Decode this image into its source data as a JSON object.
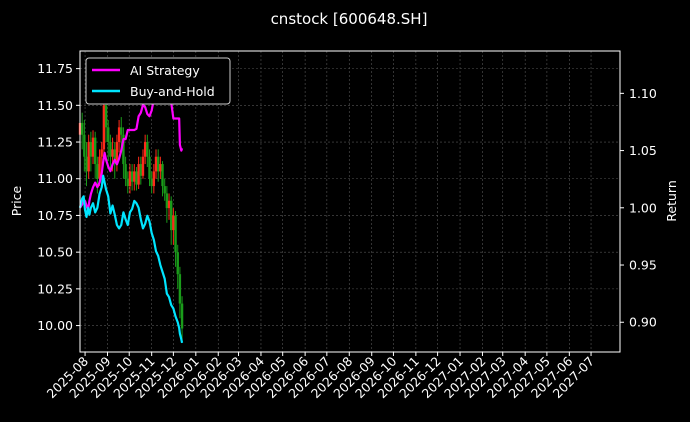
{
  "chart_data": {
    "type": "line",
    "title": "cnstock [600648.SH]",
    "ylabel_left": "Price",
    "ylabel_right": "Return",
    "ylim_left": [
      9.82,
      11.87
    ],
    "ylim_right": [
      0.874,
      1.137
    ],
    "xlim": [
      "2025-07-25",
      "2027-08-10"
    ],
    "x_tick_labels": [
      "2025-08",
      "2025-09",
      "2025-10",
      "2025-11",
      "2025-12",
      "2026-01",
      "2026-02",
      "2026-03",
      "2026-04",
      "2026-05",
      "2026-06",
      "2026-07",
      "2026-08",
      "2026-09",
      "2026-10",
      "2026-11",
      "2026-12",
      "2027-01",
      "2027-02",
      "2027-03",
      "2027-04",
      "2027-05",
      "2027-06",
      "2027-07"
    ],
    "x_tick_dates": [
      "2025-08-01",
      "2025-09-01",
      "2025-10-01",
      "2025-11-01",
      "2025-12-01",
      "2026-01-01",
      "2026-02-01",
      "2026-03-01",
      "2026-04-01",
      "2026-05-01",
      "2026-06-01",
      "2026-07-01",
      "2026-08-01",
      "2026-09-01",
      "2026-10-01",
      "2026-11-01",
      "2026-12-01",
      "2027-01-01",
      "2027-02-01",
      "2027-03-01",
      "2027-04-01",
      "2027-05-01",
      "2027-06-01",
      "2027-07-01"
    ],
    "y_left_ticks": [
      "10.00",
      "10.25",
      "10.50",
      "10.75",
      "11.00",
      "11.25",
      "11.50",
      "11.75"
    ],
    "y_right_ticks": [
      "0.90",
      "0.95",
      "1.00",
      "1.05",
      "1.10"
    ],
    "grid": true,
    "legend_position": "top-left",
    "colors": {
      "background": "#000000",
      "up_candle": "#ff2a1a",
      "down_candle": "#1a9c1a",
      "ai_strategy": "#ff00ff",
      "buy_and_hold": "#00e5ff",
      "grid": "#555555"
    },
    "candles": [
      {
        "x": "2025-07-25",
        "open": 11.3,
        "close": 11.38,
        "low": 11.22,
        "high": 11.42
      },
      {
        "x": "2025-07-28",
        "open": 11.38,
        "close": 11.3,
        "low": 11.2,
        "high": 11.45
      },
      {
        "x": "2025-07-31",
        "open": 11.3,
        "close": 11.15,
        "low": 11.05,
        "high": 11.4
      },
      {
        "x": "2025-08-03",
        "open": 11.15,
        "close": 11.05,
        "low": 10.95,
        "high": 11.25
      },
      {
        "x": "2025-08-06",
        "open": 11.05,
        "close": 11.25,
        "low": 11.0,
        "high": 11.3
      },
      {
        "x": "2025-08-09",
        "open": 11.25,
        "close": 11.15,
        "low": 11.05,
        "high": 11.32
      },
      {
        "x": "2025-08-12",
        "open": 11.15,
        "close": 11.28,
        "low": 11.1,
        "high": 11.33
      },
      {
        "x": "2025-08-15",
        "open": 11.28,
        "close": 11.1,
        "low": 11.0,
        "high": 11.32
      },
      {
        "x": "2025-08-18",
        "open": 11.1,
        "close": 11.0,
        "low": 10.9,
        "high": 11.15
      },
      {
        "x": "2025-08-21",
        "open": 11.0,
        "close": 11.15,
        "low": 10.95,
        "high": 11.2
      },
      {
        "x": "2025-08-24",
        "open": 11.15,
        "close": 11.2,
        "low": 11.05,
        "high": 11.25
      },
      {
        "x": "2025-08-27",
        "open": 11.2,
        "close": 11.5,
        "low": 11.15,
        "high": 11.62
      },
      {
        "x": "2025-08-30",
        "open": 11.5,
        "close": 11.35,
        "low": 11.25,
        "high": 11.58
      },
      {
        "x": "2025-09-02",
        "open": 11.35,
        "close": 11.25,
        "low": 11.12,
        "high": 11.4
      },
      {
        "x": "2025-09-05",
        "open": 11.25,
        "close": 11.15,
        "low": 11.05,
        "high": 11.3
      },
      {
        "x": "2025-09-08",
        "open": 11.15,
        "close": 11.2,
        "low": 11.05,
        "high": 11.28
      },
      {
        "x": "2025-09-11",
        "open": 11.2,
        "close": 11.1,
        "low": 11.0,
        "high": 11.25
      },
      {
        "x": "2025-09-14",
        "open": 11.1,
        "close": 11.25,
        "low": 11.05,
        "high": 11.3
      },
      {
        "x": "2025-09-17",
        "open": 11.25,
        "close": 11.35,
        "low": 11.18,
        "high": 11.4
      },
      {
        "x": "2025-09-20",
        "open": 11.35,
        "close": 11.3,
        "low": 11.2,
        "high": 11.42
      },
      {
        "x": "2025-09-23",
        "open": 11.3,
        "close": 11.1,
        "low": 11.0,
        "high": 11.35
      },
      {
        "x": "2025-09-26",
        "open": 11.1,
        "close": 11.0,
        "low": 10.95,
        "high": 11.15
      },
      {
        "x": "2025-09-29",
        "open": 11.0,
        "close": 10.95,
        "low": 10.9,
        "high": 11.05
      },
      {
        "x": "2025-10-02",
        "open": 10.95,
        "close": 11.05,
        "low": 10.9,
        "high": 11.1
      },
      {
        "x": "2025-10-05",
        "open": 11.05,
        "close": 10.98,
        "low": 10.92,
        "high": 11.1
      },
      {
        "x": "2025-10-08",
        "open": 10.98,
        "close": 11.05,
        "low": 10.92,
        "high": 11.1
      },
      {
        "x": "2025-10-11",
        "open": 11.05,
        "close": 10.96,
        "low": 10.92,
        "high": 11.08
      },
      {
        "x": "2025-10-14",
        "open": 10.96,
        "close": 11.1,
        "low": 10.93,
        "high": 11.15
      },
      {
        "x": "2025-10-17",
        "open": 11.1,
        "close": 11.02,
        "low": 10.96,
        "high": 11.15
      },
      {
        "x": "2025-10-20",
        "open": 11.02,
        "close": 11.15,
        "low": 11.0,
        "high": 11.2
      },
      {
        "x": "2025-10-23",
        "open": 11.15,
        "close": 11.25,
        "low": 11.1,
        "high": 11.3
      },
      {
        "x": "2025-10-26",
        "open": 11.25,
        "close": 11.15,
        "low": 11.08,
        "high": 11.3
      },
      {
        "x": "2025-10-29",
        "open": 11.15,
        "close": 11.0,
        "low": 10.95,
        "high": 11.2
      },
      {
        "x": "2025-11-01",
        "open": 11.0,
        "close": 10.95,
        "low": 10.9,
        "high": 11.05
      },
      {
        "x": "2025-11-04",
        "open": 10.95,
        "close": 11.05,
        "low": 10.9,
        "high": 11.1
      },
      {
        "x": "2025-11-07",
        "open": 11.05,
        "close": 11.15,
        "low": 11.0,
        "high": 11.2
      },
      {
        "x": "2025-11-10",
        "open": 11.15,
        "close": 11.05,
        "low": 10.98,
        "high": 11.2
      },
      {
        "x": "2025-11-13",
        "open": 11.05,
        "close": 11.1,
        "low": 11.0,
        "high": 11.15
      },
      {
        "x": "2025-11-16",
        "open": 11.1,
        "close": 10.95,
        "low": 10.88,
        "high": 11.12
      },
      {
        "x": "2025-11-19",
        "open": 10.95,
        "close": 10.9,
        "low": 10.85,
        "high": 11.0
      },
      {
        "x": "2025-11-22",
        "open": 10.9,
        "close": 10.8,
        "low": 10.7,
        "high": 10.95
      },
      {
        "x": "2025-11-25",
        "open": 10.8,
        "close": 10.85,
        "low": 10.72,
        "high": 10.9
      },
      {
        "x": "2025-11-28",
        "open": 10.85,
        "close": 10.65,
        "low": 10.55,
        "high": 10.88
      },
      {
        "x": "2025-12-01",
        "open": 10.65,
        "close": 10.75,
        "low": 10.55,
        "high": 10.8
      },
      {
        "x": "2025-12-04",
        "open": 10.75,
        "close": 10.5,
        "low": 10.4,
        "high": 10.78
      },
      {
        "x": "2025-12-07",
        "open": 10.5,
        "close": 10.35,
        "low": 10.25,
        "high": 10.55
      },
      {
        "x": "2025-12-10",
        "open": 10.35,
        "close": 10.15,
        "low": 10.05,
        "high": 10.4
      },
      {
        "x": "2025-12-13",
        "open": 10.15,
        "close": 9.98,
        "low": 9.9,
        "high": 10.2
      }
    ],
    "series": [
      {
        "name": "AI Strategy",
        "points": [
          [
            "2025-07-25",
            1.0
          ],
          [
            "2025-07-28",
            1.003
          ],
          [
            "2025-07-30",
            1.006
          ],
          [
            "2025-08-01",
            1.006
          ],
          [
            "2025-08-03",
            1.002
          ],
          [
            "2025-08-05",
            0.998
          ],
          [
            "2025-08-07",
            1.006
          ],
          [
            "2025-08-09",
            1.012
          ],
          [
            "2025-08-12",
            1.018
          ],
          [
            "2025-08-15",
            1.022
          ],
          [
            "2025-08-18",
            1.018
          ],
          [
            "2025-08-21",
            1.022
          ],
          [
            "2025-08-24",
            1.03
          ],
          [
            "2025-08-26",
            1.04
          ],
          [
            "2025-08-28",
            1.048
          ],
          [
            "2025-08-30",
            1.042
          ],
          [
            "2025-09-02",
            1.036
          ],
          [
            "2025-09-05",
            1.032
          ],
          [
            "2025-09-08",
            1.038
          ],
          [
            "2025-09-11",
            1.042
          ],
          [
            "2025-09-14",
            1.038
          ],
          [
            "2025-09-17",
            1.043
          ],
          [
            "2025-09-20",
            1.05
          ],
          [
            "2025-09-23",
            1.06
          ],
          [
            "2025-09-26",
            1.06
          ],
          [
            "2025-09-29",
            1.068
          ],
          [
            "2025-10-02",
            1.068
          ],
          [
            "2025-10-05",
            1.068
          ],
          [
            "2025-10-08",
            1.068
          ],
          [
            "2025-10-11",
            1.069
          ],
          [
            "2025-10-14",
            1.08
          ],
          [
            "2025-10-17",
            1.083
          ],
          [
            "2025-10-20",
            1.09
          ],
          [
            "2025-10-23",
            1.088
          ],
          [
            "2025-10-26",
            1.082
          ],
          [
            "2025-10-29",
            1.08
          ],
          [
            "2025-11-01",
            1.085
          ],
          [
            "2025-11-04",
            1.095
          ],
          [
            "2025-11-07",
            1.106
          ],
          [
            "2025-11-10",
            1.112
          ],
          [
            "2025-11-13",
            1.108
          ],
          [
            "2025-11-16",
            1.098
          ],
          [
            "2025-11-19",
            1.094
          ],
          [
            "2025-11-22",
            1.094
          ],
          [
            "2025-11-25",
            1.1
          ],
          [
            "2025-11-28",
            1.092
          ],
          [
            "2025-12-01",
            1.078
          ],
          [
            "2025-12-04",
            1.078
          ],
          [
            "2025-12-07",
            1.078
          ],
          [
            "2025-12-09",
            1.078
          ],
          [
            "2025-12-10",
            1.055
          ],
          [
            "2025-12-12",
            1.05
          ],
          [
            "2025-12-13",
            1.052
          ]
        ]
      },
      {
        "name": "Buy-and-Hold",
        "points": [
          [
            "2025-07-25",
            1.0
          ],
          [
            "2025-07-28",
            1.008
          ],
          [
            "2025-07-30",
            1.01
          ],
          [
            "2025-08-01",
            0.998
          ],
          [
            "2025-08-03",
            0.992
          ],
          [
            "2025-08-05",
            1.0
          ],
          [
            "2025-08-07",
            0.994
          ],
          [
            "2025-08-09",
            1.0
          ],
          [
            "2025-08-12",
            1.004
          ],
          [
            "2025-08-15",
            0.996
          ],
          [
            "2025-08-18",
            1.0
          ],
          [
            "2025-08-21",
            1.012
          ],
          [
            "2025-08-24",
            1.018
          ],
          [
            "2025-08-26",
            1.028
          ],
          [
            "2025-08-28",
            1.022
          ],
          [
            "2025-08-30",
            1.016
          ],
          [
            "2025-09-02",
            1.01
          ],
          [
            "2025-09-05",
            0.995
          ],
          [
            "2025-09-08",
            1.002
          ],
          [
            "2025-09-11",
            0.994
          ],
          [
            "2025-09-14",
            0.985
          ],
          [
            "2025-09-17",
            0.982
          ],
          [
            "2025-09-20",
            0.985
          ],
          [
            "2025-09-23",
            0.996
          ],
          [
            "2025-09-26",
            0.99
          ],
          [
            "2025-09-29",
            0.985
          ],
          [
            "2025-10-02",
            0.996
          ],
          [
            "2025-10-05",
            0.999
          ],
          [
            "2025-10-08",
            1.006
          ],
          [
            "2025-10-11",
            1.004
          ],
          [
            "2025-10-14",
            1.0
          ],
          [
            "2025-10-17",
            0.99
          ],
          [
            "2025-10-20",
            0.982
          ],
          [
            "2025-10-23",
            0.986
          ],
          [
            "2025-10-26",
            0.993
          ],
          [
            "2025-10-29",
            0.988
          ],
          [
            "2025-11-01",
            0.978
          ],
          [
            "2025-11-04",
            0.972
          ],
          [
            "2025-11-07",
            0.962
          ],
          [
            "2025-11-10",
            0.958
          ],
          [
            "2025-11-13",
            0.95
          ],
          [
            "2025-11-16",
            0.944
          ],
          [
            "2025-11-19",
            0.938
          ],
          [
            "2025-11-22",
            0.925
          ],
          [
            "2025-11-25",
            0.922
          ],
          [
            "2025-11-28",
            0.915
          ],
          [
            "2025-12-01",
            0.912
          ],
          [
            "2025-12-04",
            0.905
          ],
          [
            "2025-12-07",
            0.9
          ],
          [
            "2025-12-09",
            0.895
          ],
          [
            "2025-12-10",
            0.89
          ],
          [
            "2025-12-12",
            0.885
          ],
          [
            "2025-12-13",
            0.882
          ]
        ]
      }
    ]
  }
}
